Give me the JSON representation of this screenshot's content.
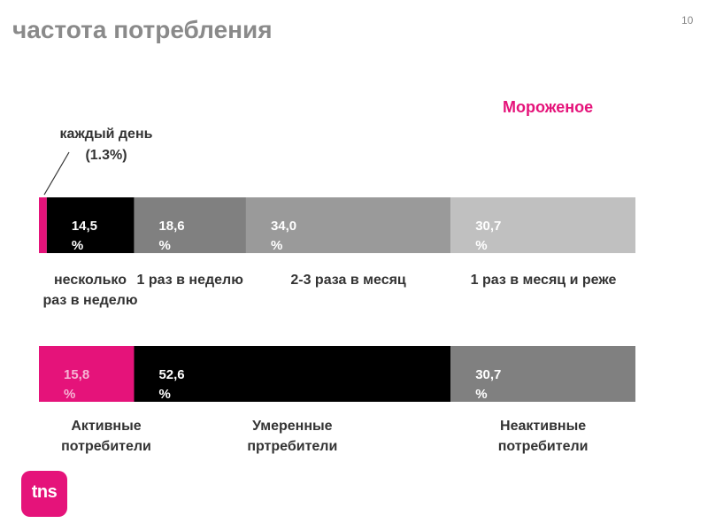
{
  "header": {
    "title": "частота потребления",
    "page_number": "10"
  },
  "chart_data": {
    "type": "bar",
    "orientation": "horizontal-stacked-100",
    "title": "Мороженое",
    "title_color": "#e5137a",
    "annotation": {
      "line1": "каждый день",
      "line2": "(1.3%)",
      "value": 1.3
    },
    "bars": [
      {
        "segments": [
          {
            "value": 1.3,
            "label": "",
            "category": "",
            "color": "#e5137a"
          },
          {
            "value": 14.5,
            "label": "14,5 %",
            "category": "несколько раз в неделю",
            "color": "#000000",
            "text_color": "#ffffff"
          },
          {
            "value": 18.6,
            "label": "18,6 %",
            "category": "1 раз в неделю",
            "color": "#808080",
            "text_color": "#ffffff"
          },
          {
            "value": 34.0,
            "label": "34,0 %",
            "category": "2-3 раза в месяц",
            "color": "#9a9a9a",
            "text_color": "#ffffff"
          },
          {
            "value": 30.7,
            "label": "30,7 %",
            "category": "1 раз в месяц и реже",
            "color": "#c0c0c0",
            "text_color": "#ffffff"
          }
        ]
      },
      {
        "segments": [
          {
            "value": 15.8,
            "label": "15,8 %",
            "category": "Активные потребители",
            "color": "#e5137a",
            "text_color": "#f6b5d4"
          },
          {
            "value": 52.6,
            "label": "52,6 %",
            "category": "Умеренные пртребители",
            "color": "#000000",
            "text_color": "#ffffff"
          },
          {
            "value": 30.7,
            "label": "30,7 %",
            "category": "Неактивные потребители",
            "color": "#808080",
            "text_color": "#ffffff"
          }
        ]
      }
    ]
  },
  "logo": {
    "text": "tns",
    "color": "#e5137a"
  }
}
